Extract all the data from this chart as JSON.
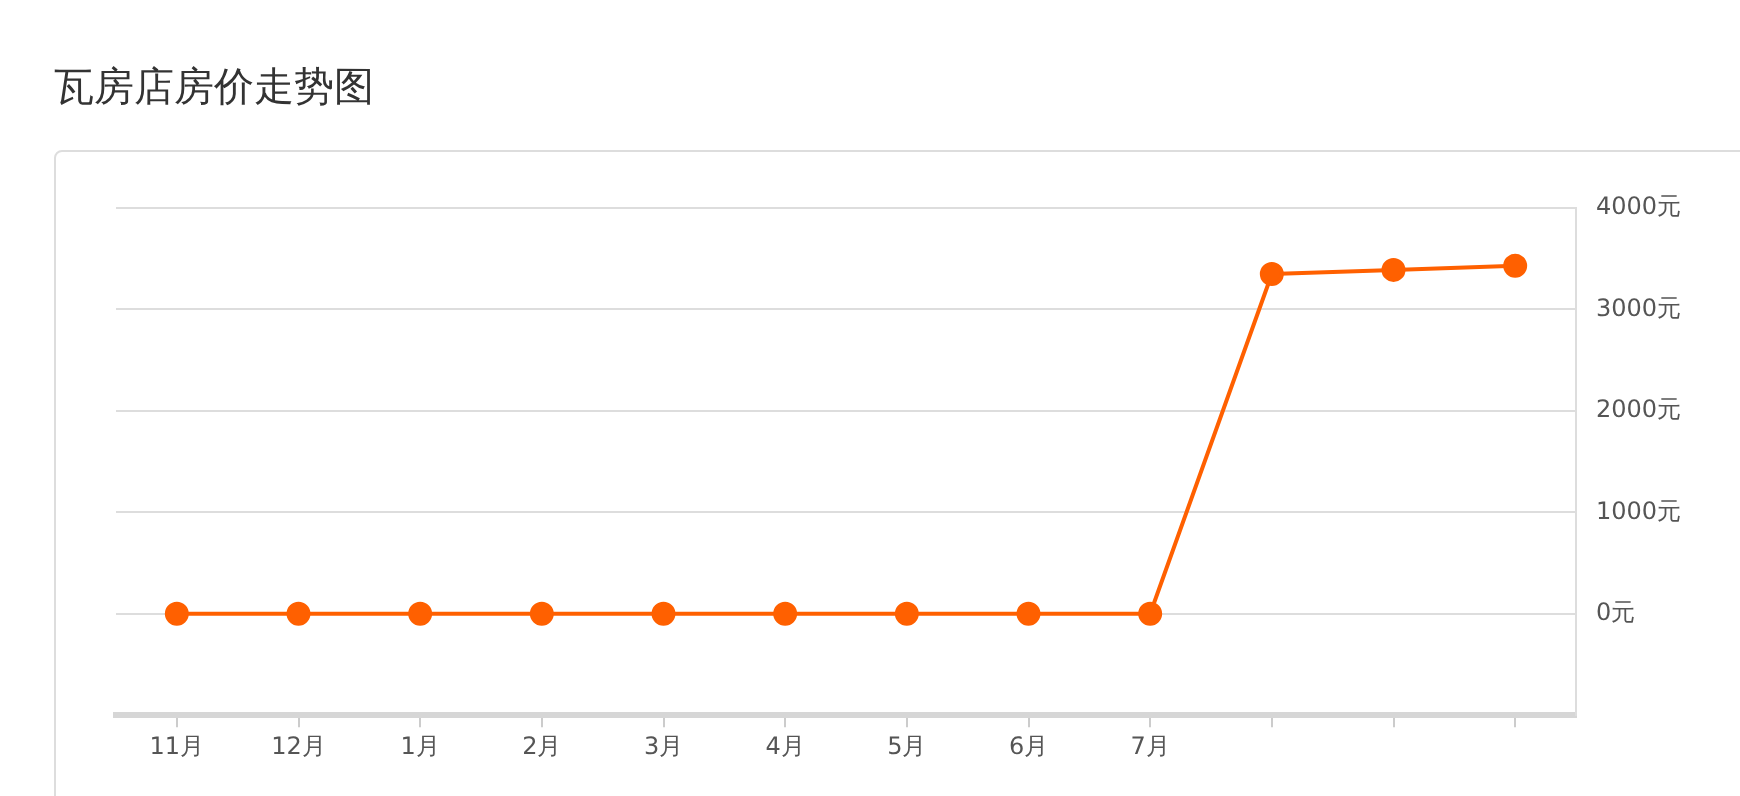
{
  "chart_data": {
    "type": "line",
    "title": "瓦房店房价走势图",
    "categories": [
      "11月",
      "12月",
      "1月",
      "2月",
      "3月",
      "4月",
      "5月",
      "6月",
      "7月",
      null,
      null,
      null
    ],
    "series": [
      {
        "color": "#ff6000",
        "values": [
          0,
          0,
          0,
          0,
          0,
          0,
          0,
          0,
          0,
          3350,
          3390,
          3430
        ]
      }
    ],
    "ylim": [
      -1000,
      4000
    ],
    "yticks": [
      {
        "value": 0,
        "label": "0元"
      },
      {
        "value": 1000,
        "label": "1000元"
      },
      {
        "value": 2000,
        "label": "2000元"
      },
      {
        "value": 3000,
        "label": "3000元"
      },
      {
        "value": 4000,
        "label": "4000元"
      }
    ],
    "grid": "y",
    "legend": false,
    "marker": "circle",
    "line_style": "solid"
  }
}
